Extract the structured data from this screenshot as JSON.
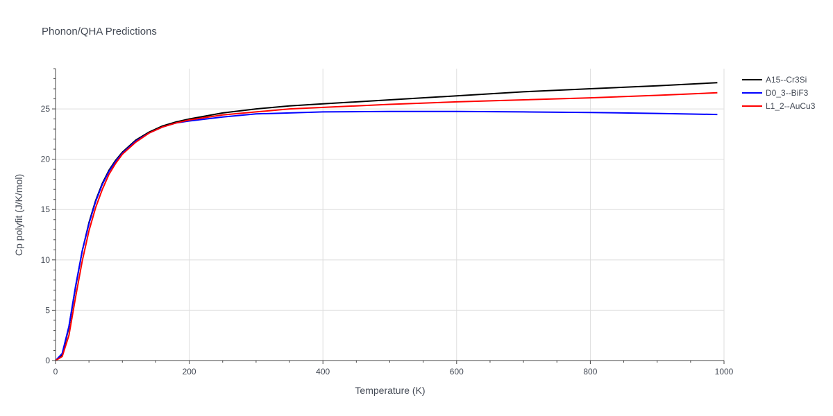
{
  "chart_data": {
    "type": "line",
    "title": "Phonon/QHA Predictions",
    "xlabel": "Temperature (K)",
    "ylabel": "Cp polyfit (J/K/mol)",
    "xlim": [
      0,
      1000
    ],
    "ylim": [
      0,
      29
    ],
    "xticks": [
      0,
      200,
      400,
      600,
      800,
      1000
    ],
    "xtick_labels": [
      "0",
      "200",
      "400",
      "600",
      "800",
      "1000"
    ],
    "yticks": [
      0,
      5,
      10,
      15,
      20,
      25
    ],
    "ytick_labels": [
      "0",
      "5",
      "10",
      "15",
      "20",
      "25"
    ],
    "grid": true,
    "legend_position": "top-right",
    "series": [
      {
        "name": "A15--Cr3Si",
        "color": "#000000",
        "x": [
          0,
          10,
          20,
          30,
          40,
          50,
          60,
          70,
          80,
          90,
          100,
          120,
          140,
          160,
          180,
          200,
          250,
          300,
          350,
          400,
          500,
          600,
          700,
          800,
          900,
          990
        ],
        "y": [
          0,
          0.6,
          3.3,
          7.3,
          10.9,
          13.7,
          15.9,
          17.6,
          18.9,
          19.9,
          20.7,
          21.9,
          22.7,
          23.3,
          23.7,
          24.0,
          24.6,
          25.0,
          25.3,
          25.5,
          25.9,
          26.3,
          26.7,
          27.0,
          27.3,
          27.6
        ]
      },
      {
        "name": "D0_3--BiF3",
        "color": "#0000ff",
        "x": [
          0,
          10,
          20,
          30,
          40,
          50,
          60,
          70,
          80,
          90,
          100,
          120,
          140,
          160,
          180,
          200,
          250,
          300,
          350,
          400,
          500,
          600,
          700,
          800,
          900,
          990
        ],
        "y": [
          0,
          0.7,
          3.4,
          7.4,
          10.9,
          13.6,
          15.8,
          17.5,
          18.8,
          19.8,
          20.6,
          21.8,
          22.6,
          23.2,
          23.6,
          23.8,
          24.2,
          24.5,
          24.6,
          24.7,
          24.75,
          24.75,
          24.7,
          24.65,
          24.55,
          24.45
        ]
      },
      {
        "name": "L1_2--AuCu3",
        "color": "#ff0000",
        "x": [
          0,
          10,
          20,
          30,
          40,
          50,
          60,
          70,
          80,
          90,
          100,
          120,
          140,
          160,
          180,
          200,
          250,
          300,
          350,
          400,
          500,
          600,
          700,
          800,
          900,
          990
        ],
        "y": [
          0,
          0.4,
          2.5,
          6.3,
          9.9,
          12.9,
          15.2,
          17.0,
          18.5,
          19.6,
          20.5,
          21.7,
          22.6,
          23.2,
          23.6,
          23.9,
          24.4,
          24.7,
          25.0,
          25.15,
          25.45,
          25.7,
          25.9,
          26.1,
          26.35,
          26.6
        ]
      }
    ]
  }
}
